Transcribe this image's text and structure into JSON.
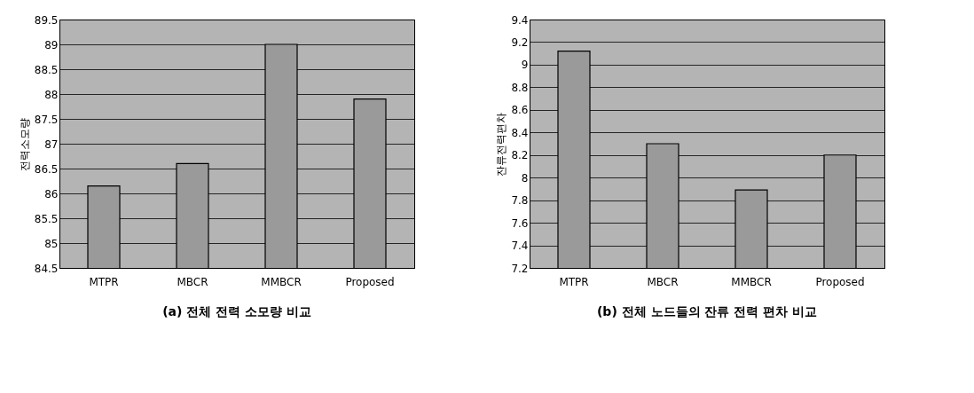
{
  "chart_data": [
    {
      "type": "bar",
      "title": "(a) 전체 전력 소모량 비교",
      "ylabel": "전력소모량",
      "categories": [
        "MTPR",
        "MBCR",
        "MMBCR",
        "Proposed"
      ],
      "values": [
        86.15,
        86.6,
        89.0,
        87.9
      ],
      "color": "#9a9a9a",
      "ylim": [
        84.5,
        89.5
      ],
      "yticks": [
        84.5,
        85,
        85.5,
        86,
        86.5,
        87,
        87.5,
        88,
        88.5,
        89,
        89.5
      ],
      "grid": "y"
    },
    {
      "type": "bar",
      "title": "(b) 전체 노드들의 잔류 전력 편차 비교",
      "ylabel": "잔류전력편차",
      "categories": [
        "MTPR",
        "MBCR",
        "MMBCR",
        "Proposed"
      ],
      "values": [
        9.12,
        8.3,
        7.89,
        8.2
      ],
      "color": "#9a9a9a",
      "ylim": [
        7.2,
        9.4
      ],
      "yticks": [
        7.2,
        7.4,
        7.6,
        7.8,
        8,
        8.2,
        8.4,
        8.6,
        8.8,
        9,
        9.2,
        9.4
      ],
      "grid": "y"
    }
  ]
}
